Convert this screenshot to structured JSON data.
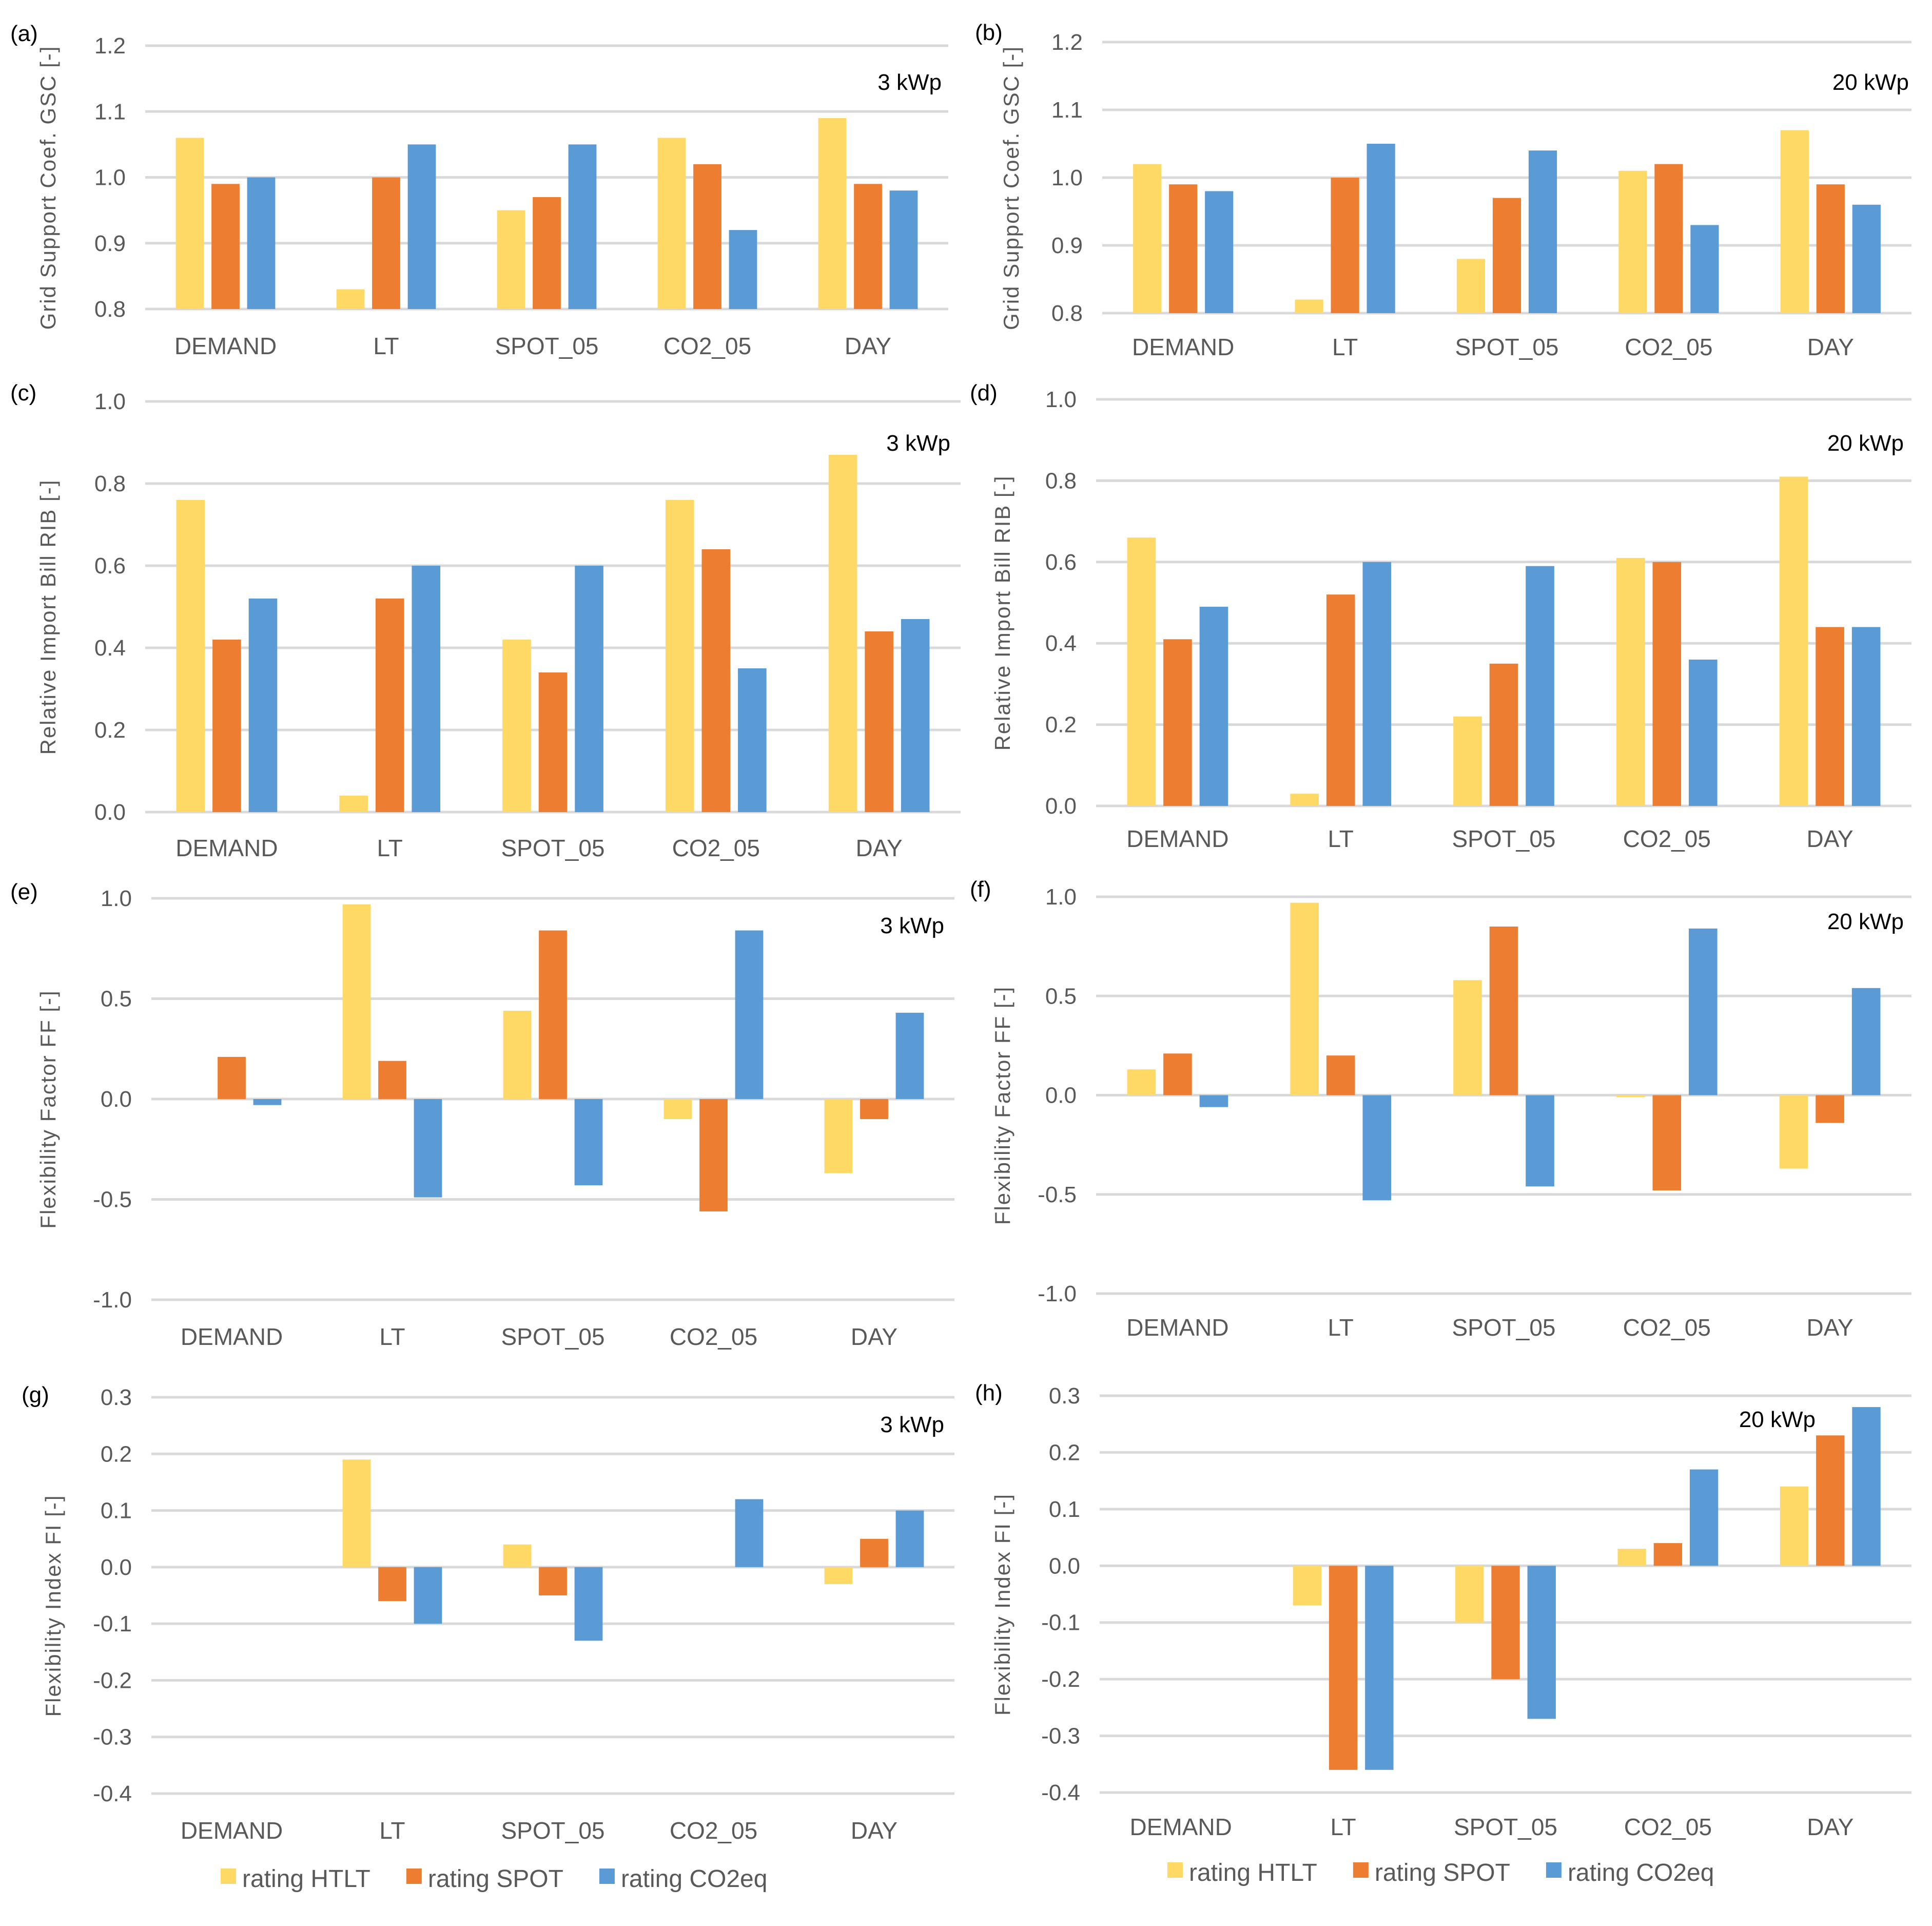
{
  "colors": {
    "rating HTLT": "#FFD966",
    "rating SPOT": "#ED7D31",
    "rating CO2eq": "#5B9BD5",
    "grid": "#D9D9D9"
  },
  "legend": [
    "rating HTLT",
    "rating SPOT",
    "rating CO2eq"
  ],
  "chart_data": [
    {
      "id": "a",
      "type": "bar",
      "panel_label": "(a)",
      "annotation": "3 kWp",
      "ylabel": "Grid Support Coef. GSC  [-]",
      "ylim": [
        0.8,
        1.2
      ],
      "yticks": [
        "0.8",
        "0.9",
        "1.0",
        "1.1",
        "1.2"
      ],
      "categories": [
        "DEMAND",
        "LT",
        "SPOT_05",
        "CO2_05",
        "DAY"
      ],
      "series": [
        {
          "name": "rating HTLT",
          "values": [
            1.06,
            0.83,
            0.95,
            1.06,
            1.09
          ]
        },
        {
          "name": "rating SPOT",
          "values": [
            0.99,
            1.0,
            0.97,
            1.02,
            0.99
          ]
        },
        {
          "name": "rating CO2eq",
          "values": [
            1.0,
            1.05,
            1.05,
            0.92,
            0.98
          ]
        }
      ]
    },
    {
      "id": "b",
      "type": "bar",
      "panel_label": "(b)",
      "annotation": "20 kWp",
      "ylabel": "Grid Support Coef. GSC  [-]",
      "ylim": [
        0.8,
        1.2
      ],
      "yticks": [
        "0.8",
        "0.9",
        "1.0",
        "1.1",
        "1.2"
      ],
      "categories": [
        "DEMAND",
        "LT",
        "SPOT_05",
        "CO2_05",
        "DAY"
      ],
      "series": [
        {
          "name": "rating HTLT",
          "values": [
            1.02,
            0.82,
            0.88,
            1.01,
            1.07
          ]
        },
        {
          "name": "rating SPOT",
          "values": [
            0.99,
            1.0,
            0.97,
            1.02,
            0.99
          ]
        },
        {
          "name": "rating CO2eq",
          "values": [
            0.98,
            1.05,
            1.04,
            0.93,
            0.96
          ]
        }
      ]
    },
    {
      "id": "c",
      "type": "bar",
      "panel_label": "(c)",
      "annotation": "3 kWp",
      "ylabel": "Relative Import Bill RIB  [-]",
      "ylim": [
        0,
        1.0
      ],
      "yticks": [
        "0.0",
        "0.2",
        "0.4",
        "0.6",
        "0.8",
        "1.0"
      ],
      "categories": [
        "DEMAND",
        "LT",
        "SPOT_05",
        "CO2_05",
        "DAY"
      ],
      "series": [
        {
          "name": "rating HTLT",
          "values": [
            0.76,
            0.04,
            0.42,
            0.76,
            0.87
          ]
        },
        {
          "name": "rating SPOT",
          "values": [
            0.42,
            0.52,
            0.34,
            0.64,
            0.44
          ]
        },
        {
          "name": "rating CO2eq",
          "values": [
            0.52,
            0.6,
            0.6,
            0.35,
            0.47
          ]
        }
      ]
    },
    {
      "id": "d",
      "type": "bar",
      "panel_label": "(d)",
      "annotation": "20 kWp",
      "ylabel": "Relative Import Bill RIB  [-]",
      "ylim": [
        0,
        1.0
      ],
      "yticks": [
        "0.0",
        "0.2",
        "0.4",
        "0.6",
        "0.8",
        "1.0"
      ],
      "categories": [
        "DEMAND",
        "LT",
        "SPOT_05",
        "CO2_05",
        "DAY"
      ],
      "series": [
        {
          "name": "rating HTLT",
          "values": [
            0.66,
            0.03,
            0.22,
            0.61,
            0.81
          ]
        },
        {
          "name": "rating SPOT",
          "values": [
            0.41,
            0.52,
            0.35,
            0.6,
            0.44
          ]
        },
        {
          "name": "rating CO2eq",
          "values": [
            0.49,
            0.6,
            0.59,
            0.36,
            0.44
          ]
        }
      ]
    },
    {
      "id": "e",
      "type": "bar",
      "panel_label": "(e)",
      "annotation": "3 kWp",
      "ylabel": "Flexibility Factor FF  [-]",
      "ylim": [
        -1.0,
        1.0
      ],
      "yticks": [
        "-1.0",
        "-0.5",
        "0.0",
        "0.5",
        "1.0"
      ],
      "categories": [
        "DEMAND",
        "LT",
        "SPOT_05",
        "CO2_05",
        "DAY"
      ],
      "series": [
        {
          "name": "rating HTLT",
          "values": [
            0,
            0.97,
            0.44,
            -0.1,
            -0.37
          ]
        },
        {
          "name": "rating SPOT",
          "values": [
            0.21,
            0.19,
            0.84,
            -0.56,
            -0.1
          ]
        },
        {
          "name": "rating CO2eq",
          "values": [
            -0.03,
            -0.49,
            -0.43,
            0.84,
            0.43
          ]
        }
      ]
    },
    {
      "id": "f",
      "type": "bar",
      "panel_label": "(f)",
      "annotation": "20 kWp",
      "ylabel": "Flexibility Factor FF  [-]",
      "ylim": [
        -1.0,
        1.0
      ],
      "yticks": [
        "-1.0",
        "-0.5",
        "0.0",
        "0.5",
        "1.0"
      ],
      "categories": [
        "DEMAND",
        "LT",
        "SPOT_05",
        "CO2_05",
        "DAY"
      ],
      "series": [
        {
          "name": "rating HTLT",
          "values": [
            0.13,
            0.97,
            0.58,
            -0.01,
            -0.37
          ]
        },
        {
          "name": "rating SPOT",
          "values": [
            0.21,
            0.2,
            0.85,
            -0.48,
            -0.14
          ]
        },
        {
          "name": "rating CO2eq",
          "values": [
            -0.06,
            -0.53,
            -0.46,
            0.84,
            0.54
          ]
        }
      ]
    },
    {
      "id": "g",
      "type": "bar",
      "panel_label": "(g)",
      "annotation": "3 kWp",
      "ylabel": "Flexibility Index FI  [-]",
      "ylim": [
        -0.4,
        0.3
      ],
      "yticks": [
        "-0.4",
        "-0.3",
        "-0.2",
        "-0.1",
        "0.0",
        "0.1",
        "0.2",
        "0.3"
      ],
      "categories": [
        "DEMAND",
        "LT",
        "SPOT_05",
        "CO2_05",
        "DAY"
      ],
      "series": [
        {
          "name": "rating HTLT",
          "values": [
            0,
            0.19,
            0.04,
            0,
            -0.03
          ]
        },
        {
          "name": "rating SPOT",
          "values": [
            0,
            -0.06,
            -0.05,
            0,
            0.05
          ]
        },
        {
          "name": "rating CO2eq",
          "values": [
            0,
            -0.1,
            -0.13,
            0.12,
            0.1
          ]
        }
      ]
    },
    {
      "id": "h",
      "type": "bar",
      "panel_label": "(h)",
      "annotation": "20 kWp",
      "ylabel": "Flexibility Index FI  [-]",
      "ylim": [
        -0.4,
        0.3
      ],
      "yticks": [
        "-0.4",
        "-0.3",
        "-0.2",
        "-0.1",
        "0.0",
        "0.1",
        "0.2",
        "0.3"
      ],
      "categories": [
        "DEMAND",
        "LT",
        "SPOT_05",
        "CO2_05",
        "DAY"
      ],
      "series": [
        {
          "name": "rating HTLT",
          "values": [
            0,
            -0.07,
            -0.1,
            0.03,
            0.14
          ]
        },
        {
          "name": "rating SPOT",
          "values": [
            0,
            -0.36,
            -0.2,
            0.04,
            0.23
          ]
        },
        {
          "name": "rating CO2eq",
          "values": [
            0,
            -0.36,
            -0.27,
            0.17,
            0.28
          ]
        }
      ]
    }
  ]
}
